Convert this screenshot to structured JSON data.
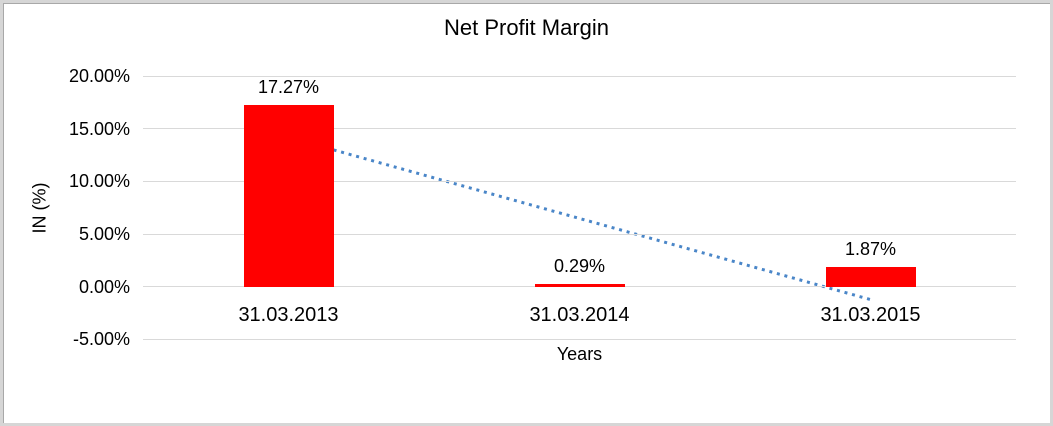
{
  "chart_data": {
    "type": "bar",
    "title": "Net Profit Margin",
    "xlabel": "Years",
    "ylabel": "IN (%)",
    "categories": [
      "31.03.2013",
      "31.03.2014",
      "31.03.2015"
    ],
    "values": [
      17.27,
      0.29,
      1.87
    ],
    "data_labels": [
      "17.27%",
      "0.29%",
      "1.87%"
    ],
    "ytick_labels": [
      "20.00%",
      "15.00%",
      "10.00%",
      "5.00%",
      "0.00%",
      "-5.00%"
    ],
    "ytick_values": [
      20,
      15,
      10,
      5,
      0,
      -5
    ],
    "ylim": [
      -5,
      20
    ],
    "grid": true,
    "legend": "none",
    "bar_color": "#ff0000",
    "gridline_color": "#d9d9d9",
    "trendline": {
      "style": "dotted",
      "color": "#4a86c8",
      "start_value": 14.18,
      "end_value": -1.22
    }
  }
}
